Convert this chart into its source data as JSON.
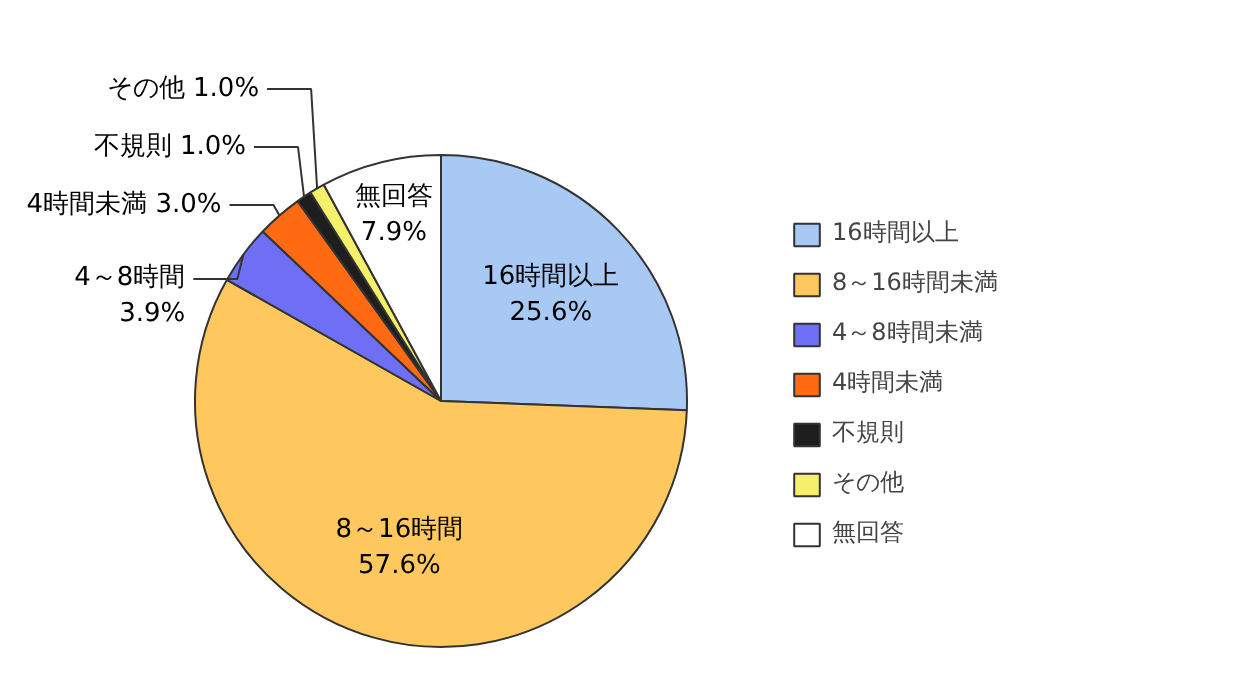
{
  "chart_data": {
    "type": "pie",
    "categories": [
      "16時間以上",
      "8～16時間未満",
      "4～8時間未満",
      "4時間未満",
      "不規則",
      "その他",
      "無回答"
    ],
    "values": [
      25.6,
      57.6,
      3.9,
      3.0,
      1.0,
      1.0,
      7.9
    ],
    "colors": [
      "#a9c9f5",
      "#ffc85f",
      "#6f6ff5",
      "#ff6a13",
      "#1e1e1e",
      "#f5f06a",
      "#ffffff"
    ],
    "value_labels": [
      "16時間以上\n25.6%",
      "8～16時間\n57.6%",
      "4～8時間\n3.9%",
      "4時間未満 3.0%",
      "不規則 1.0%",
      "その他 1.0%",
      "無回答\n7.9%"
    ],
    "legend": "right"
  }
}
